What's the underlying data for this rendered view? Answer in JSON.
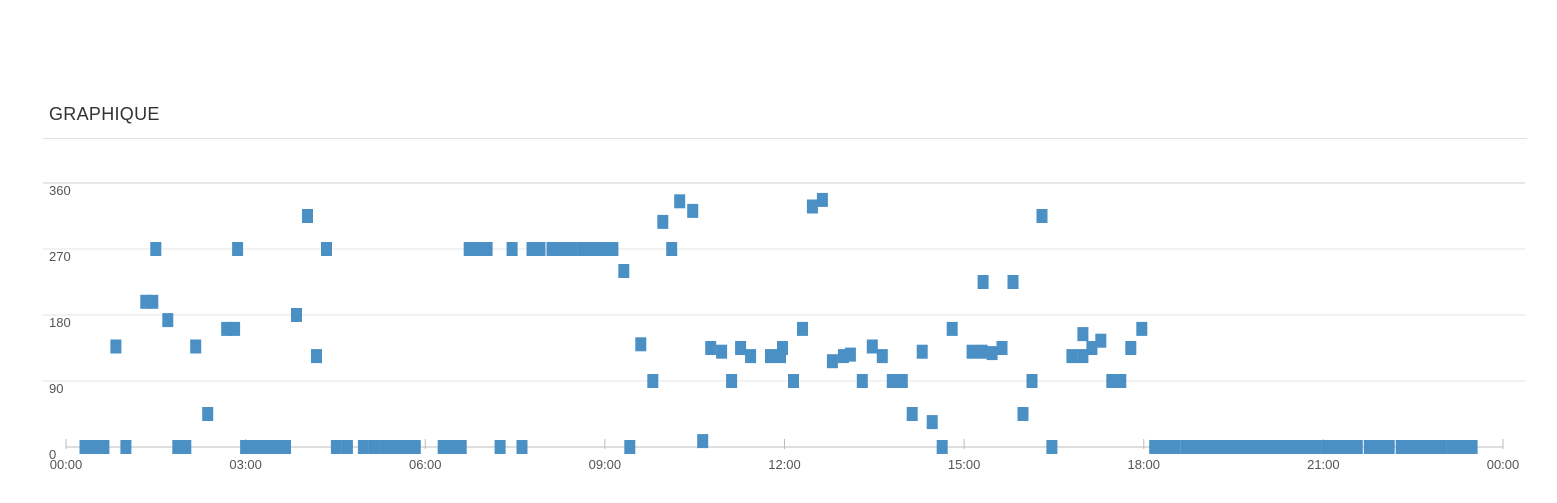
{
  "header": {
    "title": "GRAPHIQUE"
  },
  "chart_data": {
    "type": "scatter",
    "title": "",
    "xlabel": "",
    "ylabel": "",
    "xlim": [
      "00:00",
      "24:00"
    ],
    "ylim": [
      0,
      360
    ],
    "grid": true,
    "yticks": [
      0,
      90,
      180,
      270,
      360
    ],
    "xtick_labels": [
      "00:00",
      "03:00",
      "06:00",
      "09:00",
      "12:00",
      "15:00",
      "18:00",
      "21:00",
      "00:00"
    ],
    "marker_color": "#4a90c4",
    "series": [
      {
        "points": [
          [
            "00:19",
            0
          ],
          [
            "00:28",
            0
          ],
          [
            "00:38",
            0
          ],
          [
            "00:50",
            137
          ],
          [
            "01:00",
            0
          ],
          [
            "01:20",
            198
          ],
          [
            "01:27",
            198
          ],
          [
            "01:30",
            270
          ],
          [
            "01:42",
            173
          ],
          [
            "01:52",
            0
          ],
          [
            "02:00",
            0
          ],
          [
            "02:10",
            137
          ],
          [
            "02:22",
            45
          ],
          [
            "02:41",
            161
          ],
          [
            "02:49",
            161
          ],
          [
            "02:52",
            270
          ],
          [
            "03:00",
            0
          ],
          [
            "03:10",
            0
          ],
          [
            "03:20",
            0
          ],
          [
            "03:30",
            0
          ],
          [
            "03:40",
            0
          ],
          [
            "03:51",
            180
          ],
          [
            "04:02",
            315
          ],
          [
            "04:11",
            124
          ],
          [
            "04:21",
            270
          ],
          [
            "04:31",
            0
          ],
          [
            "04:42",
            0
          ],
          [
            "04:58",
            0
          ],
          [
            "05:09",
            0
          ],
          [
            "05:20",
            0
          ],
          [
            "05:30",
            0
          ],
          [
            "05:40",
            0
          ],
          [
            "05:50",
            0
          ],
          [
            "06:18",
            0
          ],
          [
            "06:28",
            0
          ],
          [
            "06:36",
            0
          ],
          [
            "06:44",
            270
          ],
          [
            "06:54",
            270
          ],
          [
            "07:02",
            270
          ],
          [
            "07:15",
            0
          ],
          [
            "07:27",
            270
          ],
          [
            "07:37",
            0
          ],
          [
            "07:47",
            270
          ],
          [
            "07:55",
            270
          ],
          [
            "08:07",
            270
          ],
          [
            "08:17",
            270
          ],
          [
            "08:27",
            270
          ],
          [
            "08:38",
            270
          ],
          [
            "08:48",
            270
          ],
          [
            "08:58",
            270
          ],
          [
            "09:08",
            270
          ],
          [
            "09:19",
            240
          ],
          [
            "09:25",
            0
          ],
          [
            "09:36",
            140
          ],
          [
            "09:48",
            90
          ],
          [
            "09:58",
            307
          ],
          [
            "10:07",
            270
          ],
          [
            "10:15",
            335
          ],
          [
            "10:28",
            322
          ],
          [
            "10:38",
            8
          ],
          [
            "10:46",
            135
          ],
          [
            "10:57",
            130
          ],
          [
            "11:07",
            90
          ],
          [
            "11:16",
            135
          ],
          [
            "11:26",
            124
          ],
          [
            "11:46",
            124
          ],
          [
            "11:56",
            124
          ],
          [
            "11:58",
            135
          ],
          [
            "12:09",
            90
          ],
          [
            "12:18",
            161
          ],
          [
            "12:28",
            328
          ],
          [
            "12:38",
            337
          ],
          [
            "12:48",
            117
          ],
          [
            "12:59",
            124
          ],
          [
            "13:06",
            126
          ],
          [
            "13:18",
            90
          ],
          [
            "13:28",
            137
          ],
          [
            "13:38",
            124
          ],
          [
            "13:48",
            90
          ],
          [
            "13:58",
            90
          ],
          [
            "14:08",
            45
          ],
          [
            "14:18",
            130
          ],
          [
            "14:28",
            34
          ],
          [
            "14:38",
            0
          ],
          [
            "14:48",
            161
          ],
          [
            "15:08",
            130
          ],
          [
            "15:18",
            130
          ],
          [
            "15:19",
            225
          ],
          [
            "15:28",
            128
          ],
          [
            "15:38",
            135
          ],
          [
            "15:49",
            225
          ],
          [
            "15:59",
            45
          ],
          [
            "16:08",
            90
          ],
          [
            "16:18",
            315
          ],
          [
            "16:28",
            0
          ],
          [
            "16:48",
            124
          ],
          [
            "16:59",
            124
          ],
          [
            "16:59",
            154
          ],
          [
            "17:08",
            135
          ],
          [
            "17:17",
            145
          ],
          [
            "17:28",
            90
          ],
          [
            "17:37",
            90
          ],
          [
            "17:47",
            135
          ],
          [
            "17:58",
            161
          ],
          [
            "18:11",
            0
          ],
          [
            "18:21",
            0
          ],
          [
            "18:31",
            0
          ],
          [
            "18:42",
            0
          ],
          [
            "18:52",
            0
          ],
          [
            "19:02",
            0
          ],
          [
            "19:12",
            0
          ],
          [
            "19:22",
            0
          ],
          [
            "19:32",
            0
          ],
          [
            "19:42",
            0
          ],
          [
            "19:53",
            0
          ],
          [
            "20:03",
            0
          ],
          [
            "20:13",
            0
          ],
          [
            "20:23",
            0
          ],
          [
            "20:33",
            0
          ],
          [
            "20:43",
            0
          ],
          [
            "20:53",
            0
          ],
          [
            "21:04",
            0
          ],
          [
            "21:14",
            0
          ],
          [
            "21:24",
            0
          ],
          [
            "21:34",
            0
          ],
          [
            "21:46",
            0
          ],
          [
            "21:56",
            0
          ],
          [
            "22:06",
            0
          ],
          [
            "22:18",
            0
          ],
          [
            "22:28",
            0
          ],
          [
            "22:38",
            0
          ],
          [
            "22:48",
            0
          ],
          [
            "22:58",
            0
          ],
          [
            "23:09",
            0
          ],
          [
            "23:19",
            0
          ],
          [
            "23:29",
            0
          ]
        ]
      }
    ]
  }
}
